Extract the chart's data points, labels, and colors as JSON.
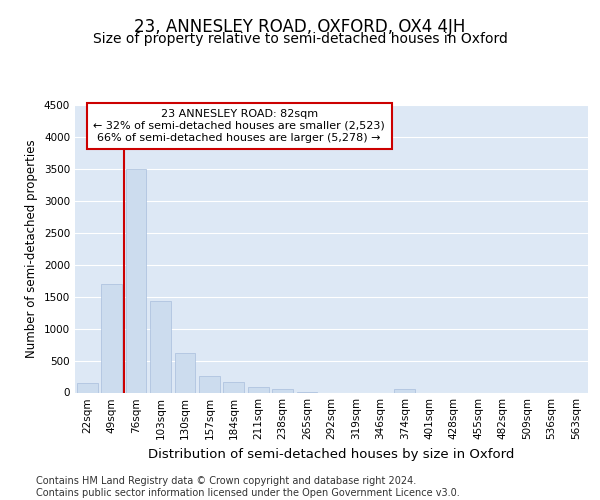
{
  "title": "23, ANNESLEY ROAD, OXFORD, OX4 4JH",
  "subtitle": "Size of property relative to semi-detached houses in Oxford",
  "xlabel": "Distribution of semi-detached houses by size in Oxford",
  "ylabel": "Number of semi-detached properties",
  "categories": [
    "22sqm",
    "49sqm",
    "76sqm",
    "103sqm",
    "130sqm",
    "157sqm",
    "184sqm",
    "211sqm",
    "238sqm",
    "265sqm",
    "292sqm",
    "319sqm",
    "346sqm",
    "374sqm",
    "401sqm",
    "428sqm",
    "455sqm",
    "482sqm",
    "509sqm",
    "536sqm",
    "563sqm"
  ],
  "values": [
    150,
    1700,
    3500,
    1430,
    620,
    255,
    165,
    90,
    55,
    10,
    0,
    0,
    0,
    50,
    0,
    0,
    0,
    0,
    0,
    0,
    0
  ],
  "bar_color": "#ccdcee",
  "bar_edge_color": "#a8bedc",
  "vline_color": "#cc0000",
  "vline_pos": 1.5,
  "annotation_text": "23 ANNESLEY ROAD: 82sqm\n← 32% of semi-detached houses are smaller (2,523)\n66% of semi-detached houses are larger (5,278) →",
  "annotation_box_facecolor": "#ffffff",
  "annotation_box_edgecolor": "#cc0000",
  "ylim": [
    0,
    4500
  ],
  "yticks": [
    0,
    500,
    1000,
    1500,
    2000,
    2500,
    3000,
    3500,
    4000,
    4500
  ],
  "plot_bg_color": "#dde8f5",
  "grid_color": "#ffffff",
  "footer": "Contains HM Land Registry data © Crown copyright and database right 2024.\nContains public sector information licensed under the Open Government Licence v3.0.",
  "title_fontsize": 12,
  "subtitle_fontsize": 10,
  "ylabel_fontsize": 8.5,
  "xlabel_fontsize": 9.5,
  "tick_fontsize": 7.5,
  "annot_fontsize": 8,
  "footer_fontsize": 7
}
